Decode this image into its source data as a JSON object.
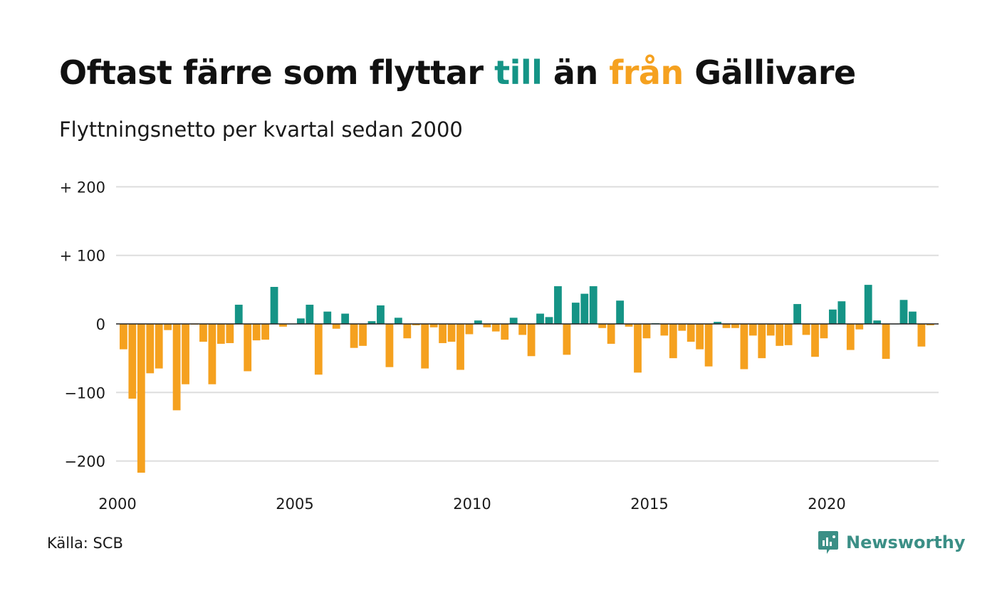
{
  "title": {
    "part1": "Oftast färre som flyttar ",
    "till": "till",
    "part2": " än ",
    "fran": "från",
    "part3": " Gällivare"
  },
  "subtitle": "Flyttningsnetto per kvartal sedan 2000",
  "source": "Källa: SCB",
  "brand": "Newsworthy",
  "colors": {
    "positive": "#159486",
    "negative": "#f5a11f",
    "grid": "#dddddd",
    "zero_line": "#222222",
    "brand": "#3b8f86"
  },
  "chart_data": {
    "type": "bar",
    "title": "Oftast färre som flyttar till än från Gällivare",
    "subtitle": "Flyttningsnetto per kvartal sedan 2000",
    "x_start_year": 2000,
    "periods_per_year": 4,
    "xticks": [
      "2000",
      "2005",
      "2010",
      "2015",
      "2020"
    ],
    "y_ticks": [
      200,
      100,
      0,
      -100,
      -200
    ],
    "y_tick_labels": [
      "+ 200",
      "+ 100",
      "0",
      "−100",
      "−200"
    ],
    "ylim": [
      -230,
      220
    ],
    "grid": true,
    "values": [
      -37,
      -109,
      -217,
      -72,
      -65,
      -9,
      -126,
      -88,
      -1,
      -26,
      -88,
      -29,
      -28,
      28,
      -69,
      -24,
      -23,
      54,
      -4,
      0,
      8,
      28,
      -74,
      18,
      -7,
      15,
      -35,
      -32,
      4,
      27,
      -63,
      9,
      -21,
      -2,
      -65,
      -5,
      -28,
      -26,
      -67,
      -15,
      5,
      -5,
      -11,
      -23,
      9,
      -16,
      -47,
      15,
      10,
      55,
      -45,
      31,
      44,
      55,
      -6,
      -29,
      34,
      -4,
      -71,
      -21,
      1,
      -17,
      -50,
      -10,
      -26,
      -37,
      -62,
      3,
      -6,
      -6,
      -66,
      -17,
      -50,
      -17,
      -32,
      -31,
      29,
      -16,
      -48,
      -21,
      21,
      33,
      -38,
      -8,
      57,
      5,
      -51,
      0,
      35,
      18,
      -33,
      -2
    ]
  }
}
